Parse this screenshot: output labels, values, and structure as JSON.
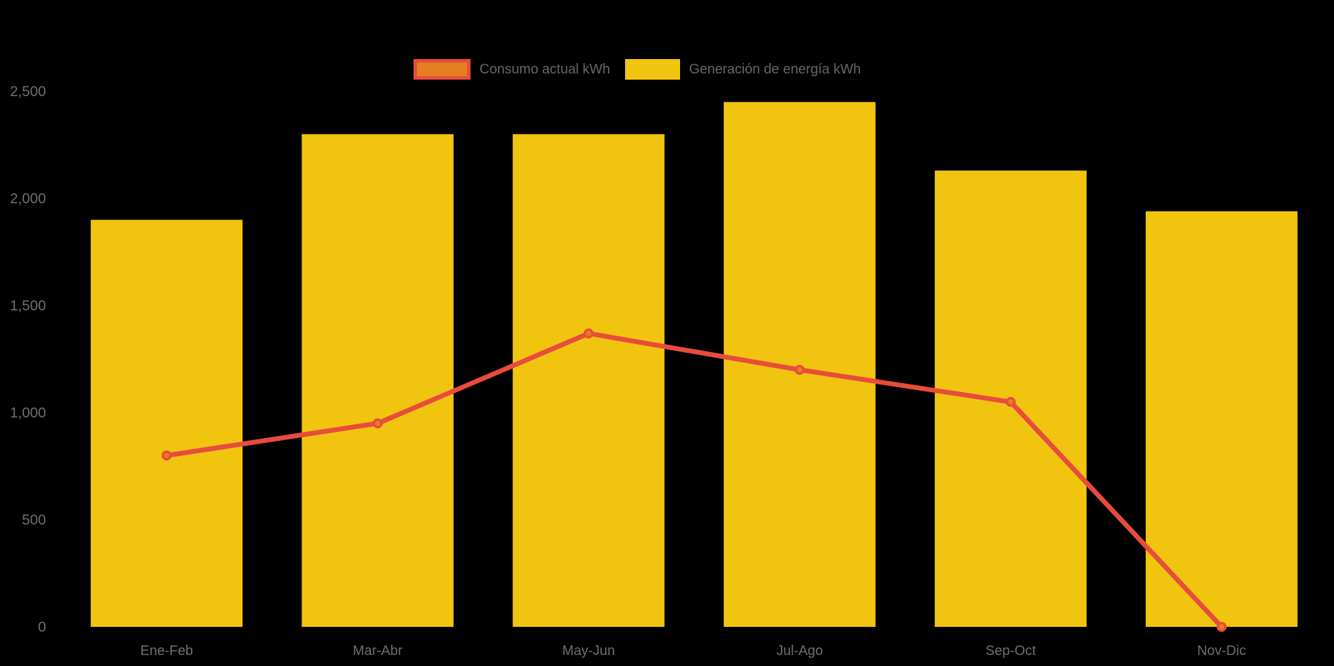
{
  "chart_data": {
    "type": "combo",
    "title": "",
    "xlabel": "",
    "ylabel": "",
    "categories": [
      "Ene-Feb",
      "Mar-Abr",
      "May-Jun",
      "Jul-Ago",
      "Sep-Oct",
      "Nov-Dic"
    ],
    "series": [
      {
        "name": "Consumo actual kWh",
        "type": "line",
        "values": [
          800,
          950,
          1370,
          1200,
          1050,
          0
        ],
        "line_color": "#e74c3c",
        "marker_fill": "#e67e22",
        "marker_stroke": "#e74c3c"
      },
      {
        "name": "Generación de energía kWh",
        "type": "bar",
        "values": [
          1900,
          2300,
          2300,
          2450,
          2130,
          1940
        ],
        "bar_color": "#f1c40f"
      }
    ],
    "ylim": [
      0,
      2500
    ],
    "yticks": [
      0,
      500,
      1000,
      1500,
      2000,
      2500
    ],
    "ytick_labels": [
      "0",
      "500",
      "1,000",
      "1,500",
      "2,000",
      "2,500"
    ],
    "grid": false,
    "legend_position": "top-center",
    "background_color": "#000000",
    "axis_text_color": "#6e6e6e",
    "legend_text_color": "#666666"
  },
  "legend": {
    "items": [
      {
        "label": "Consumo actual kWh"
      },
      {
        "label": "Generación de energía kWh"
      }
    ]
  }
}
